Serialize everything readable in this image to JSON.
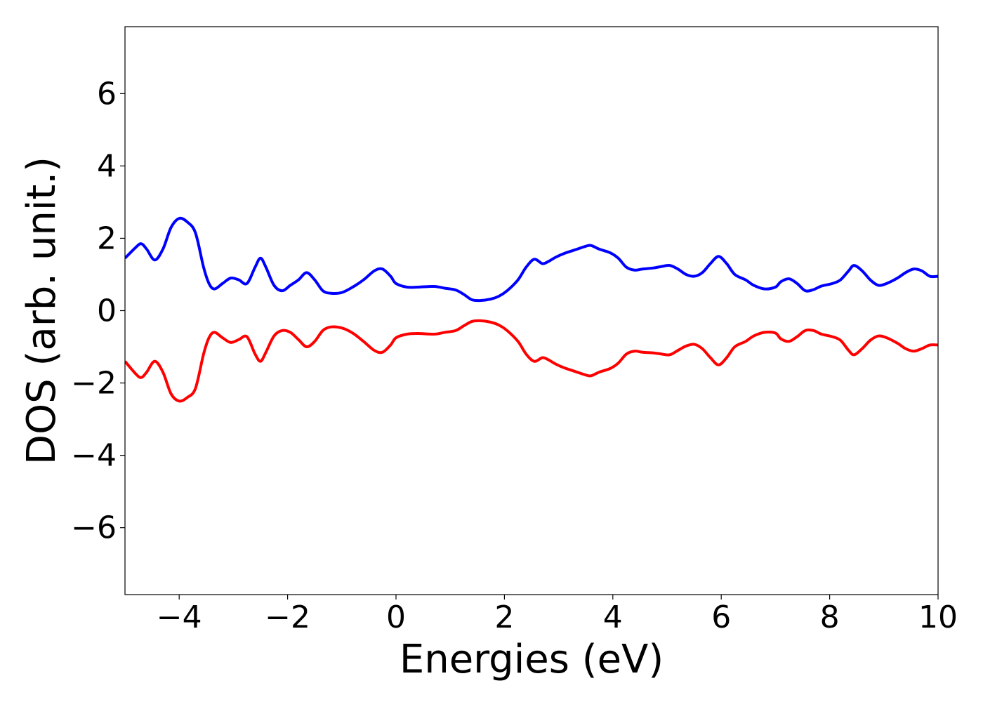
{
  "chart_data": {
    "type": "line",
    "title": "",
    "xlabel": "Energies (eV)",
    "ylabel": "DOS (arb. unit.)",
    "xlim": [
      -5,
      10
    ],
    "ylim": [
      -7.85,
      7.85
    ],
    "grid": false,
    "legend": "none",
    "x_ticks": [
      -4,
      -2,
      0,
      2,
      4,
      6,
      8,
      10
    ],
    "x_tick_labels": [
      "−4",
      "−2",
      "0",
      "2",
      "4",
      "6",
      "8",
      "10"
    ],
    "y_ticks": [
      6,
      4,
      2,
      0,
      -2,
      -4,
      -6
    ],
    "y_tick_labels": [
      "6",
      "4",
      "2",
      "0",
      "−2",
      "−4",
      "−6"
    ],
    "x": [
      -5.0,
      -4.8,
      -4.7,
      -4.6,
      -4.45,
      -4.3,
      -4.15,
      -4.0,
      -3.85,
      -3.7,
      -3.55,
      -3.45,
      -3.35,
      -3.2,
      -3.05,
      -2.9,
      -2.75,
      -2.6,
      -2.5,
      -2.4,
      -2.25,
      -2.1,
      -1.95,
      -1.8,
      -1.65,
      -1.5,
      -1.35,
      -1.2,
      -1.0,
      -0.8,
      -0.6,
      -0.4,
      -0.25,
      -0.1,
      0.0,
      0.2,
      0.4,
      0.7,
      0.9,
      1.1,
      1.25,
      1.4,
      1.55,
      1.75,
      1.9,
      2.05,
      2.25,
      2.4,
      2.55,
      2.7,
      2.8,
      2.95,
      3.1,
      3.3,
      3.5,
      3.6,
      3.75,
      3.95,
      4.1,
      4.25,
      4.4,
      4.55,
      4.75,
      4.9,
      5.05,
      5.2,
      5.35,
      5.5,
      5.65,
      5.8,
      5.95,
      6.1,
      6.25,
      6.45,
      6.6,
      6.8,
      7.0,
      7.1,
      7.25,
      7.4,
      7.55,
      7.7,
      7.85,
      8.05,
      8.2,
      8.35,
      8.45,
      8.6,
      8.75,
      8.9,
      9.05,
      9.25,
      9.4,
      9.55,
      9.7,
      9.85,
      10.0
    ],
    "series": [
      {
        "color": "#0000ff",
        "values": [
          1.45,
          1.75,
          1.85,
          1.7,
          1.4,
          1.7,
          2.3,
          2.55,
          2.45,
          2.15,
          1.2,
          0.75,
          0.6,
          0.75,
          0.9,
          0.85,
          0.75,
          1.2,
          1.45,
          1.2,
          0.7,
          0.55,
          0.7,
          0.85,
          1.05,
          0.85,
          0.55,
          0.48,
          0.5,
          0.65,
          0.85,
          1.1,
          1.15,
          0.95,
          0.75,
          0.65,
          0.65,
          0.67,
          0.62,
          0.57,
          0.45,
          0.3,
          0.28,
          0.32,
          0.4,
          0.55,
          0.85,
          1.2,
          1.42,
          1.3,
          1.35,
          1.48,
          1.58,
          1.68,
          1.78,
          1.8,
          1.7,
          1.6,
          1.45,
          1.2,
          1.12,
          1.15,
          1.18,
          1.22,
          1.25,
          1.15,
          1.0,
          0.95,
          1.05,
          1.3,
          1.5,
          1.3,
          1.0,
          0.85,
          0.7,
          0.6,
          0.65,
          0.8,
          0.88,
          0.75,
          0.55,
          0.58,
          0.68,
          0.75,
          0.85,
          1.1,
          1.25,
          1.1,
          0.85,
          0.7,
          0.75,
          0.9,
          1.05,
          1.15,
          1.1,
          0.95,
          0.95
        ]
      },
      {
        "color": "#ff0000",
        "values": [
          -1.4,
          -1.75,
          -1.85,
          -1.7,
          -1.4,
          -1.7,
          -2.3,
          -2.5,
          -2.4,
          -2.15,
          -1.2,
          -0.75,
          -0.6,
          -0.75,
          -0.88,
          -0.8,
          -0.72,
          -1.2,
          -1.4,
          -1.15,
          -0.7,
          -0.55,
          -0.6,
          -0.8,
          -1.0,
          -0.85,
          -0.55,
          -0.45,
          -0.48,
          -0.62,
          -0.85,
          -1.1,
          -1.15,
          -0.95,
          -0.75,
          -0.65,
          -0.63,
          -0.65,
          -0.6,
          -0.55,
          -0.42,
          -0.3,
          -0.28,
          -0.32,
          -0.4,
          -0.55,
          -0.85,
          -1.2,
          -1.4,
          -1.3,
          -1.35,
          -1.48,
          -1.58,
          -1.68,
          -1.78,
          -1.8,
          -1.7,
          -1.6,
          -1.45,
          -1.2,
          -1.12,
          -1.15,
          -1.17,
          -1.2,
          -1.22,
          -1.1,
          -0.98,
          -0.93,
          -1.05,
          -1.3,
          -1.5,
          -1.3,
          -1.0,
          -0.85,
          -0.7,
          -0.6,
          -0.62,
          -0.78,
          -0.85,
          -0.72,
          -0.55,
          -0.55,
          -0.65,
          -0.72,
          -0.82,
          -1.1,
          -1.22,
          -1.05,
          -0.82,
          -0.7,
          -0.75,
          -0.9,
          -1.05,
          -1.12,
          -1.05,
          -0.95,
          -0.95
        ]
      }
    ]
  }
}
